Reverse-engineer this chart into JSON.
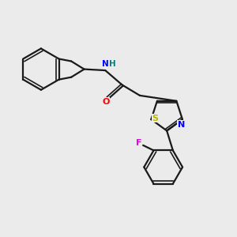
{
  "bg_color": "#ebebeb",
  "bond_color": "#1a1a1a",
  "atom_colors": {
    "N": "#0000ff",
    "O": "#ff0000",
    "S": "#b8b800",
    "F": "#ee00ee",
    "H": "#008080",
    "C": "#1a1a1a"
  },
  "figsize": [
    3.0,
    3.0
  ],
  "dpi": 100
}
